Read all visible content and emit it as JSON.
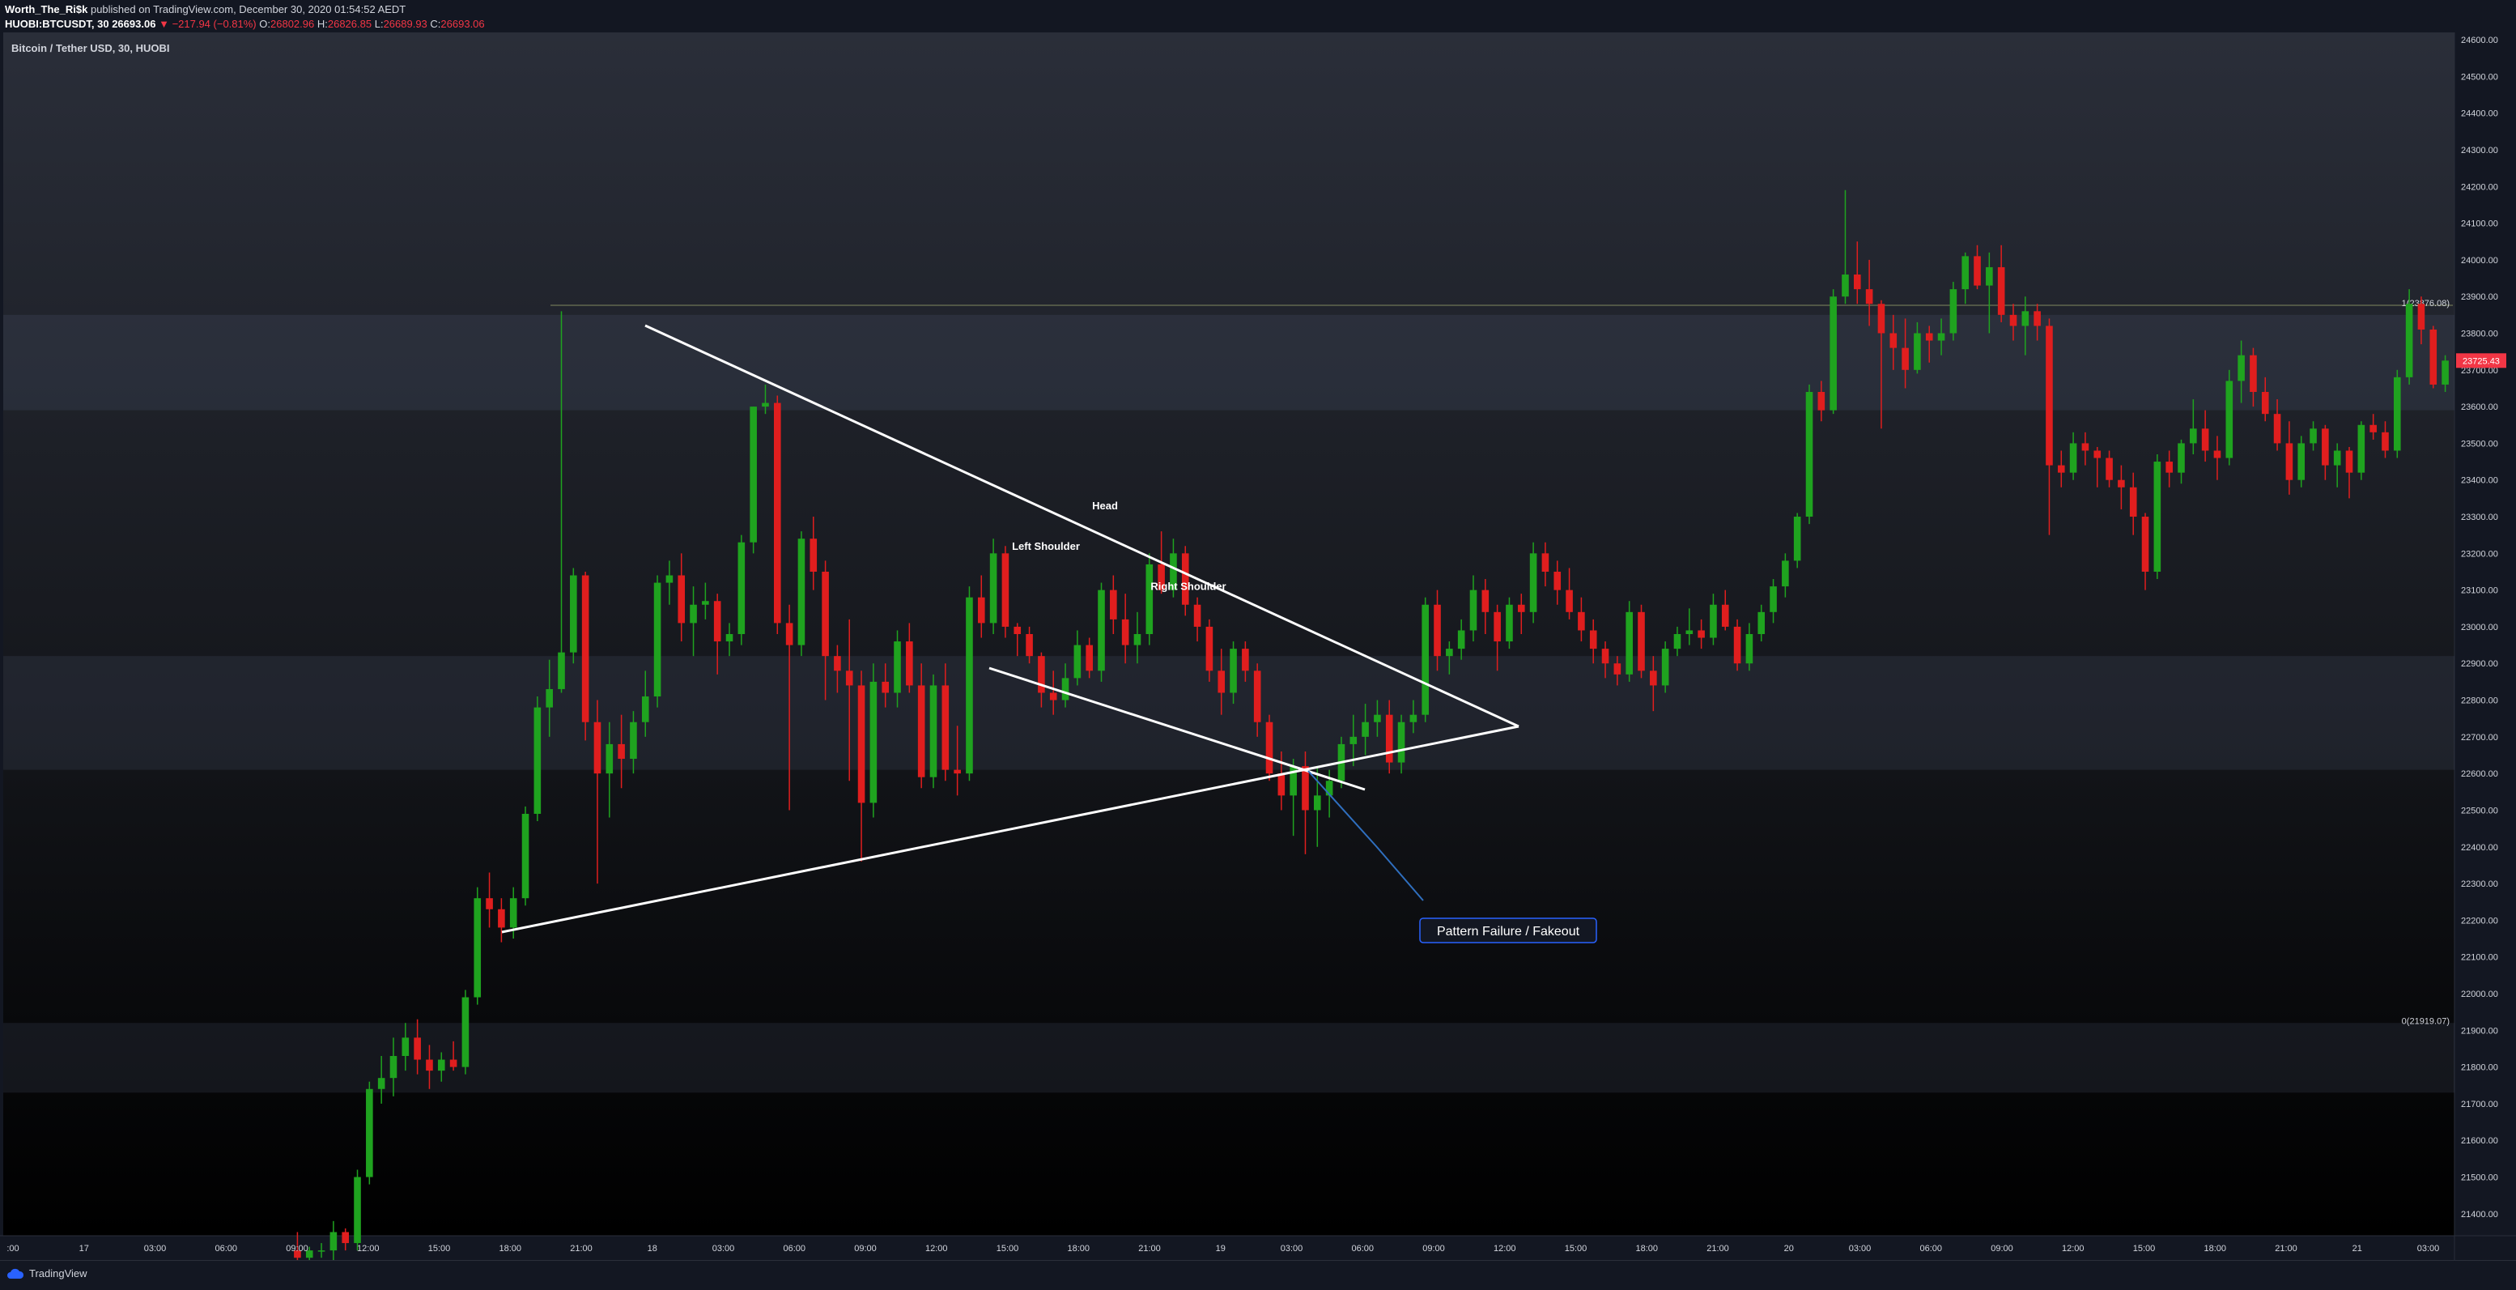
{
  "header": {
    "author": "Worth_The_Ri$k",
    "published_text": "published on TradingView.com, December 30, 2020 01:54:52 AEDT",
    "symbol": "HUOBI:BTCUSDT, 30",
    "last_price": "26693.06",
    "change": "−217.94 (−0.81%)",
    "o_label": "O:",
    "o_value": "26802.96",
    "h_label": "H:",
    "h_value": "26826.85",
    "l_label": "L:",
    "l_value": "26689.93",
    "c_label": "C:",
    "c_value": "26693.06"
  },
  "footer": {
    "brand": "TradingView"
  },
  "colors": {
    "up": "#1fa31f",
    "down": "#e01e1e",
    "background": "#131722",
    "zone": "#2a2e39",
    "annotation": "#ffffff",
    "callout_border": "#2962ff"
  },
  "chart_data": {
    "type": "candlestick",
    "title": "Bitcoin / Tether USD, 30, HUOBI",
    "ylim": [
      21340,
      24620
    ],
    "y_ticks": [
      "24600.00",
      "24500.00",
      "24400.00",
      "24300.00",
      "24200.00",
      "24100.00",
      "24000.00",
      "23900.00",
      "23800.00",
      "23700.00",
      "23600.00",
      "23500.00",
      "23400.00",
      "23300.00",
      "23200.00",
      "23100.00",
      "23000.00",
      "22900.00",
      "22800.00",
      "22700.00",
      "22600.00",
      "22500.00",
      "22400.00",
      "22300.00",
      "22200.00",
      "22100.00",
      "22000.00",
      "21900.00",
      "21800.00",
      "21700.00",
      "21600.00",
      "21500.00",
      "21400.00"
    ],
    "x_ticks": [
      ":00",
      "17",
      "03:00",
      "06:00",
      "09:00",
      "12:00",
      "15:00",
      "18:00",
      "21:00",
      "18",
      "03:00",
      "06:00",
      "09:00",
      "12:00",
      "15:00",
      "18:00",
      "21:00",
      "19",
      "03:00",
      "06:00",
      "09:00",
      "12:00",
      "15:00",
      "18:00",
      "21:00",
      "20",
      "03:00",
      "06:00",
      "09:00",
      "12:00",
      "15:00",
      "18:00",
      "21:00",
      "21",
      "03:00"
    ],
    "current_price_label": "23725.43",
    "current_price": 23725.43,
    "fib_labels": [
      {
        "text": "1(23876.08)",
        "price": 23876.08
      },
      {
        "text": "0(21919.07)",
        "price": 21919.07
      }
    ],
    "zones": [
      {
        "top": 23850,
        "bottom": 23590
      },
      {
        "top": 22920,
        "bottom": 22610
      },
      {
        "top": 21920,
        "bottom": 21730
      }
    ],
    "annotations": [
      {
        "text": "Head",
        "price": 23320
      },
      {
        "text": "Left Shoulder",
        "price": 23210
      },
      {
        "text": "Right Shoulder",
        "price": 23100
      },
      {
        "text": "Pattern Failure / Fakeout",
        "price": 22170
      }
    ],
    "candles": [
      [
        21300,
        21350,
        21200,
        21280
      ],
      [
        21280,
        21310,
        21260,
        21300
      ],
      [
        21300,
        21320,
        21280,
        21300
      ],
      [
        21300,
        21380,
        21270,
        21350
      ],
      [
        21350,
        21360,
        21300,
        21320
      ],
      [
        21320,
        21520,
        21300,
        21500
      ],
      [
        21500,
        21760,
        21480,
        21740
      ],
      [
        21740,
        21830,
        21700,
        21770
      ],
      [
        21770,
        21880,
        21720,
        21830
      ],
      [
        21830,
        21920,
        21790,
        21880
      ],
      [
        21880,
        21930,
        21780,
        21820
      ],
      [
        21820,
        21860,
        21740,
        21790
      ],
      [
        21790,
        21840,
        21760,
        21820
      ],
      [
        21820,
        21870,
        21790,
        21800
      ],
      [
        21800,
        22010,
        21780,
        21990
      ],
      [
        21990,
        22290,
        21970,
        22260
      ],
      [
        22260,
        22330,
        22180,
        22230
      ],
      [
        22230,
        22260,
        22140,
        22180
      ],
      [
        22180,
        22290,
        22150,
        22260
      ],
      [
        22260,
        22510,
        22240,
        22490
      ],
      [
        22490,
        22810,
        22470,
        22780
      ],
      [
        22780,
        22910,
        22700,
        22830
      ],
      [
        22830,
        23860,
        22820,
        22930
      ],
      [
        22930,
        23160,
        22900,
        23140
      ],
      [
        23140,
        23150,
        22690,
        22740
      ],
      [
        22740,
        22800,
        22300,
        22600
      ],
      [
        22600,
        22740,
        22480,
        22680
      ],
      [
        22680,
        22760,
        22560,
        22640
      ],
      [
        22640,
        22770,
        22600,
        22740
      ],
      [
        22740,
        22880,
        22700,
        22810
      ],
      [
        22810,
        23140,
        22780,
        23120
      ],
      [
        23120,
        23180,
        23060,
        23140
      ],
      [
        23140,
        23200,
        22960,
        23010
      ],
      [
        23010,
        23110,
        22920,
        23060
      ],
      [
        23060,
        23120,
        23020,
        23070
      ],
      [
        23070,
        23090,
        22870,
        22960
      ],
      [
        22960,
        23010,
        22920,
        22980
      ],
      [
        22980,
        23250,
        22950,
        23230
      ],
      [
        23230,
        23600,
        23200,
        23600
      ],
      [
        23600,
        23660,
        23580,
        23610
      ],
      [
        23610,
        23630,
        22980,
        23010
      ],
      [
        23010,
        23060,
        22500,
        22950
      ],
      [
        22950,
        23260,
        22920,
        23240
      ],
      [
        23240,
        23300,
        23100,
        23150
      ],
      [
        23150,
        23180,
        22800,
        22920
      ],
      [
        22920,
        22950,
        22820,
        22880
      ],
      [
        22880,
        23020,
        22580,
        22840
      ],
      [
        22840,
        22880,
        22360,
        22520
      ],
      [
        22520,
        22900,
        22480,
        22850
      ],
      [
        22850,
        22900,
        22780,
        22820
      ],
      [
        22820,
        22990,
        22780,
        22960
      ],
      [
        22960,
        23010,
        22820,
        22840
      ],
      [
        22840,
        22900,
        22560,
        22590
      ],
      [
        22590,
        22870,
        22560,
        22840
      ],
      [
        22840,
        22900,
        22580,
        22610
      ],
      [
        22610,
        22730,
        22540,
        22600
      ],
      [
        22600,
        23110,
        22580,
        23080
      ],
      [
        23080,
        23140,
        22970,
        23010
      ],
      [
        23010,
        23240,
        22980,
        23200
      ],
      [
        23200,
        23220,
        22970,
        23000
      ],
      [
        23000,
        23010,
        22920,
        22980
      ],
      [
        22980,
        23000,
        22900,
        22920
      ],
      [
        22920,
        22930,
        22780,
        22820
      ],
      [
        22820,
        22880,
        22760,
        22800
      ],
      [
        22800,
        22900,
        22780,
        22860
      ],
      [
        22860,
        22990,
        22840,
        22950
      ],
      [
        22950,
        22970,
        22860,
        22880
      ],
      [
        22880,
        23120,
        22850,
        23100
      ],
      [
        23100,
        23140,
        22980,
        23020
      ],
      [
        23020,
        23090,
        22900,
        22950
      ],
      [
        22950,
        23040,
        22900,
        22980
      ],
      [
        22980,
        23200,
        22950,
        23170
      ],
      [
        23170,
        23260,
        23090,
        23100
      ],
      [
        23100,
        23240,
        23080,
        23200
      ],
      [
        23200,
        23220,
        23030,
        23060
      ],
      [
        23060,
        23080,
        22960,
        23000
      ],
      [
        23000,
        23020,
        22850,
        22880
      ],
      [
        22880,
        22940,
        22760,
        22820
      ],
      [
        22820,
        22960,
        22790,
        22940
      ],
      [
        22940,
        22960,
        22850,
        22880
      ],
      [
        22880,
        22900,
        22700,
        22740
      ],
      [
        22740,
        22760,
        22580,
        22600
      ],
      [
        22600,
        22660,
        22500,
        22540
      ],
      [
        22540,
        22640,
        22430,
        22620
      ],
      [
        22620,
        22660,
        22380,
        22500
      ],
      [
        22500,
        22620,
        22400,
        22540
      ],
      [
        22540,
        22610,
        22480,
        22580
      ],
      [
        22580,
        22700,
        22560,
        22680
      ],
      [
        22680,
        22760,
        22620,
        22700
      ],
      [
        22700,
        22790,
        22650,
        22740
      ],
      [
        22740,
        22800,
        22700,
        22760
      ],
      [
        22760,
        22800,
        22600,
        22630
      ],
      [
        22630,
        22760,
        22600,
        22740
      ],
      [
        22740,
        22800,
        22710,
        22760
      ],
      [
        22760,
        23080,
        22740,
        23060
      ],
      [
        23060,
        23100,
        22880,
        22920
      ],
      [
        22920,
        22960,
        22870,
        22940
      ],
      [
        22940,
        23020,
        22910,
        22990
      ],
      [
        22990,
        23140,
        22960,
        23100
      ],
      [
        23100,
        23130,
        22980,
        23040
      ],
      [
        23040,
        23060,
        22880,
        22960
      ],
      [
        22960,
        23080,
        22940,
        23060
      ],
      [
        23060,
        23090,
        22980,
        23040
      ],
      [
        23040,
        23230,
        23010,
        23200
      ],
      [
        23200,
        23230,
        23110,
        23150
      ],
      [
        23150,
        23180,
        23060,
        23100
      ],
      [
        23100,
        23160,
        23020,
        23040
      ],
      [
        23040,
        23080,
        22960,
        22990
      ],
      [
        22990,
        23020,
        22900,
        22940
      ],
      [
        22940,
        22960,
        22860,
        22900
      ],
      [
        22900,
        22920,
        22840,
        22870
      ],
      [
        22870,
        23070,
        22850,
        23040
      ],
      [
        23040,
        23060,
        22860,
        22880
      ],
      [
        22880,
        22920,
        22770,
        22840
      ],
      [
        22840,
        22960,
        22820,
        22940
      ],
      [
        22940,
        23000,
        22920,
        22980
      ],
      [
        22980,
        23050,
        22950,
        22990
      ],
      [
        22990,
        23020,
        22940,
        22970
      ],
      [
        22970,
        23090,
        22950,
        23060
      ],
      [
        23060,
        23100,
        22990,
        23000
      ],
      [
        23000,
        23020,
        22880,
        22900
      ],
      [
        22900,
        23010,
        22880,
        22980
      ],
      [
        22980,
        23060,
        22960,
        23040
      ],
      [
        23040,
        23130,
        23010,
        23110
      ],
      [
        23110,
        23200,
        23080,
        23180
      ],
      [
        23180,
        23310,
        23160,
        23300
      ],
      [
        23300,
        23660,
        23280,
        23640
      ],
      [
        23640,
        23670,
        23560,
        23590
      ],
      [
        23590,
        23920,
        23580,
        23900
      ],
      [
        23900,
        24190,
        23880,
        23960
      ],
      [
        23960,
        24050,
        23880,
        23920
      ],
      [
        23920,
        24000,
        23820,
        23880
      ],
      [
        23880,
        23890,
        23540,
        23800
      ],
      [
        23800,
        23850,
        23700,
        23760
      ],
      [
        23760,
        23840,
        23650,
        23700
      ],
      [
        23700,
        23830,
        23690,
        23800
      ],
      [
        23800,
        23820,
        23720,
        23780
      ],
      [
        23780,
        23840,
        23740,
        23800
      ],
      [
        23800,
        23940,
        23780,
        23920
      ],
      [
        23920,
        24020,
        23880,
        24010
      ],
      [
        24010,
        24040,
        23920,
        23930
      ],
      [
        23930,
        24020,
        23800,
        23980
      ],
      [
        23980,
        24040,
        23830,
        23850
      ],
      [
        23850,
        23880,
        23780,
        23820
      ],
      [
        23820,
        23900,
        23740,
        23860
      ],
      [
        23860,
        23880,
        23780,
        23820
      ],
      [
        23820,
        23840,
        23250,
        23440
      ],
      [
        23440,
        23480,
        23380,
        23420
      ],
      [
        23420,
        23530,
        23400,
        23500
      ],
      [
        23500,
        23530,
        23440,
        23480
      ],
      [
        23480,
        23490,
        23380,
        23460
      ],
      [
        23460,
        23480,
        23380,
        23400
      ],
      [
        23400,
        23440,
        23320,
        23380
      ],
      [
        23380,
        23420,
        23250,
        23300
      ],
      [
        23300,
        23310,
        23100,
        23150
      ],
      [
        23150,
        23470,
        23130,
        23450
      ],
      [
        23450,
        23480,
        23380,
        23420
      ],
      [
        23420,
        23510,
        23390,
        23500
      ],
      [
        23500,
        23620,
        23470,
        23540
      ],
      [
        23540,
        23590,
        23450,
        23480
      ],
      [
        23480,
        23520,
        23400,
        23460
      ],
      [
        23460,
        23700,
        23440,
        23670
      ],
      [
        23670,
        23780,
        23610,
        23740
      ],
      [
        23740,
        23760,
        23600,
        23640
      ],
      [
        23640,
        23680,
        23560,
        23580
      ],
      [
        23580,
        23620,
        23480,
        23500
      ],
      [
        23500,
        23560,
        23360,
        23400
      ],
      [
        23400,
        23520,
        23380,
        23500
      ],
      [
        23500,
        23560,
        23480,
        23540
      ],
      [
        23540,
        23550,
        23400,
        23440
      ],
      [
        23440,
        23500,
        23380,
        23480
      ],
      [
        23480,
        23490,
        23350,
        23420
      ],
      [
        23420,
        23560,
        23400,
        23550
      ],
      [
        23550,
        23580,
        23510,
        23530
      ],
      [
        23530,
        23560,
        23460,
        23480
      ],
      [
        23480,
        23700,
        23460,
        23680
      ],
      [
        23680,
        23920,
        23660,
        23880
      ],
      [
        23880,
        23900,
        23770,
        23810
      ],
      [
        23810,
        23820,
        23650,
        23660
      ],
      [
        23660,
        23740,
        23640,
        23725.43
      ]
    ]
  }
}
